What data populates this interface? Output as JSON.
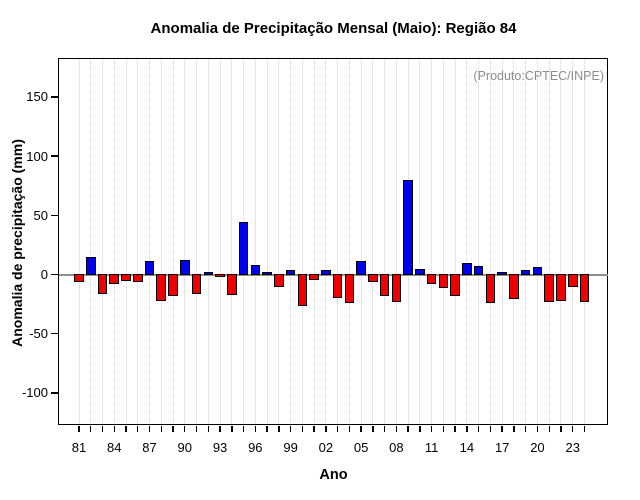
{
  "annotation": "(Produto:CPTEC/INPE)",
  "colors": {
    "positive_bar": "#0000ee",
    "negative_bar": "#ee0000",
    "bar_border": "#000000",
    "zero_line": "#8f8f8f",
    "gridline": "#d4d4d4",
    "annotation_text": "#8c8c8c"
  },
  "chart_data": {
    "type": "bar",
    "title": "Anomalia de Precipitação Mensal (Maio): Região 84",
    "xlabel": "Ano",
    "ylabel": "Anomalia de precipitação (mm)",
    "x": [
      1981,
      1982,
      1983,
      1984,
      1985,
      1986,
      1987,
      1988,
      1989,
      1990,
      1991,
      1992,
      1993,
      1994,
      1995,
      1996,
      1997,
      1998,
      1999,
      2000,
      2001,
      2002,
      2003,
      2004,
      2005,
      2006,
      2007,
      2008,
      2009,
      2010,
      2011,
      2012,
      2013,
      2014,
      2015,
      2016,
      2017,
      2018,
      2019,
      2020,
      2021,
      2022,
      2023,
      2024
    ],
    "values": [
      -6,
      15,
      -16,
      -8,
      -5,
      -5.5,
      11,
      -22,
      -18,
      12,
      -16,
      2,
      -1.5,
      -17,
      44,
      8,
      2.5,
      -10,
      3.5,
      -26,
      -4,
      4,
      -19,
      -24,
      11.5,
      -5.5,
      -17.5,
      -23,
      80,
      5,
      -8,
      -11,
      -17.5,
      9.5,
      7,
      -24,
      2,
      -20,
      4,
      6.5,
      -23,
      -22,
      -10,
      -23
    ],
    "x_tick_labels": [
      "81",
      "84",
      "87",
      "90",
      "93",
      "96",
      "99",
      "02",
      "05",
      "08",
      "11",
      "14",
      "17",
      "20",
      "23"
    ],
    "x_label_interval": 3,
    "y_ticks": [
      -100,
      -50,
      0,
      50,
      100,
      150
    ],
    "ylim": [
      -127,
      183
    ],
    "grid": "vertical-dotted",
    "legend": "none",
    "series_colors": {
      "positive": "blue",
      "negative": "red"
    }
  }
}
